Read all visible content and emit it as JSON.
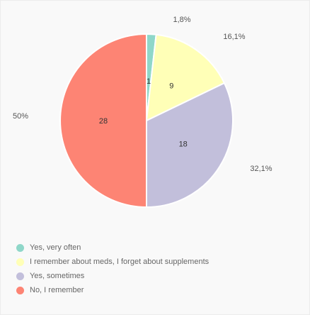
{
  "chart_data": {
    "type": "pie",
    "categories": [
      "Yes, very often",
      "I remember about meds, I forget about supplements",
      "Yes, sometimes",
      "No, I remember"
    ],
    "values": [
      1,
      9,
      18,
      28
    ],
    "value_labels": [
      "1",
      "9",
      "18",
      "28"
    ],
    "percent_labels": [
      "1,8%",
      "16,1%",
      "32,1%",
      "50%"
    ],
    "colors": [
      "#8fd7c9",
      "#ffffb7",
      "#c2bfdb",
      "#fd8474"
    ],
    "legend_position": "bottom-left"
  }
}
